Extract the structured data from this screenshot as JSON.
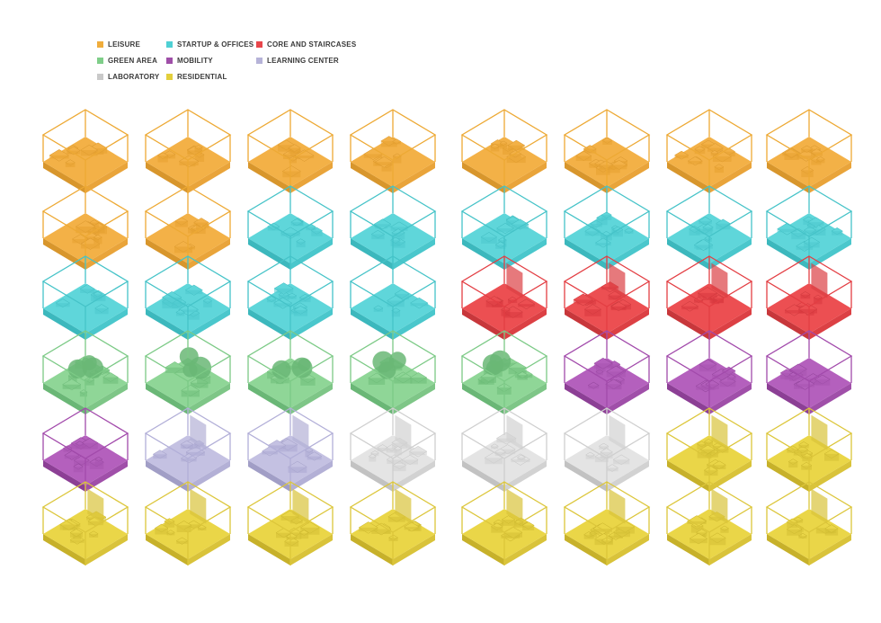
{
  "legend": [
    {
      "label": "LEISURE",
      "color": "#f0ad3c",
      "key": "leisure"
    },
    {
      "label": "GREEN AREA",
      "color": "#7fce89",
      "key": "green"
    },
    {
      "label": "LABORATORY",
      "color": "#c9c9c9",
      "key": "lab"
    },
    {
      "label": "STARTUP & OFFICES",
      "color": "#4fd0d4",
      "key": "startup"
    },
    {
      "label": "MOBILITY",
      "color": "#9f4fa8",
      "key": "mobility"
    },
    {
      "label": "RESIDENTIAL",
      "color": "#e3cf3c",
      "key": "residential"
    },
    {
      "label": "CORE AND STAIRCASES",
      "color": "#e8464b",
      "key": "core"
    },
    {
      "label": "LEARNING CENTER",
      "color": "#b6b3d8",
      "key": "learning"
    }
  ],
  "palette": {
    "leisure": {
      "top": "#f3b147",
      "left": "#d8962c",
      "right": "#e9a43a",
      "line": "#eda934",
      "furn": "#e6a030"
    },
    "startup": {
      "top": "#5fd6da",
      "left": "#3cb8bd",
      "right": "#4ac7cc",
      "line": "#45c3c8",
      "furn": "#4cc9ce"
    },
    "core": {
      "top": "#ec4f52",
      "left": "#c8373b",
      "right": "#dc4044",
      "line": "#e33e43",
      "furn": "#d9393e"
    },
    "green": {
      "top": "#8fd697",
      "left": "#6ab776",
      "right": "#7ec687",
      "line": "#7cca86",
      "furn": "#6dbe78"
    },
    "mobility": {
      "top": "#b460bd",
      "left": "#8c3f95",
      "right": "#a04fa9",
      "line": "#a24aab",
      "furn": "#a853b1"
    },
    "learning": {
      "top": "#c4c1e2",
      "left": "#a19ec6",
      "right": "#b3b0d6",
      "line": "#b2afd8",
      "furn": "#aba8d1"
    },
    "lab": {
      "top": "#e4e4e4",
      "left": "#c2c2c2",
      "right": "#d2d2d2",
      "line": "#cfcfcf",
      "furn": "#cfcfcf"
    },
    "residential": {
      "top": "#ead648",
      "left": "#c7b12a",
      "right": "#d9c33a",
      "line": "#dcc63a",
      "furn": "#d4bf35"
    }
  },
  "grid": [
    [
      "leisure",
      "leisure",
      "leisure",
      "leisure",
      "leisure",
      "leisure",
      "leisure",
      "leisure"
    ],
    [
      "leisure",
      "leisure",
      "startup",
      "startup",
      "startup",
      "startup",
      "startup",
      "startup"
    ],
    [
      "startup",
      "startup",
      "startup",
      "startup",
      "core",
      "core",
      "core",
      "core"
    ],
    [
      "green",
      "green",
      "green",
      "green",
      "green",
      "mobility",
      "mobility",
      "mobility"
    ],
    [
      "mobility",
      "learning",
      "learning",
      "lab",
      "lab",
      "lab",
      "residential",
      "residential"
    ],
    [
      "residential",
      "residential",
      "residential",
      "residential",
      "residential",
      "residential",
      "residential",
      "residential"
    ]
  ]
}
